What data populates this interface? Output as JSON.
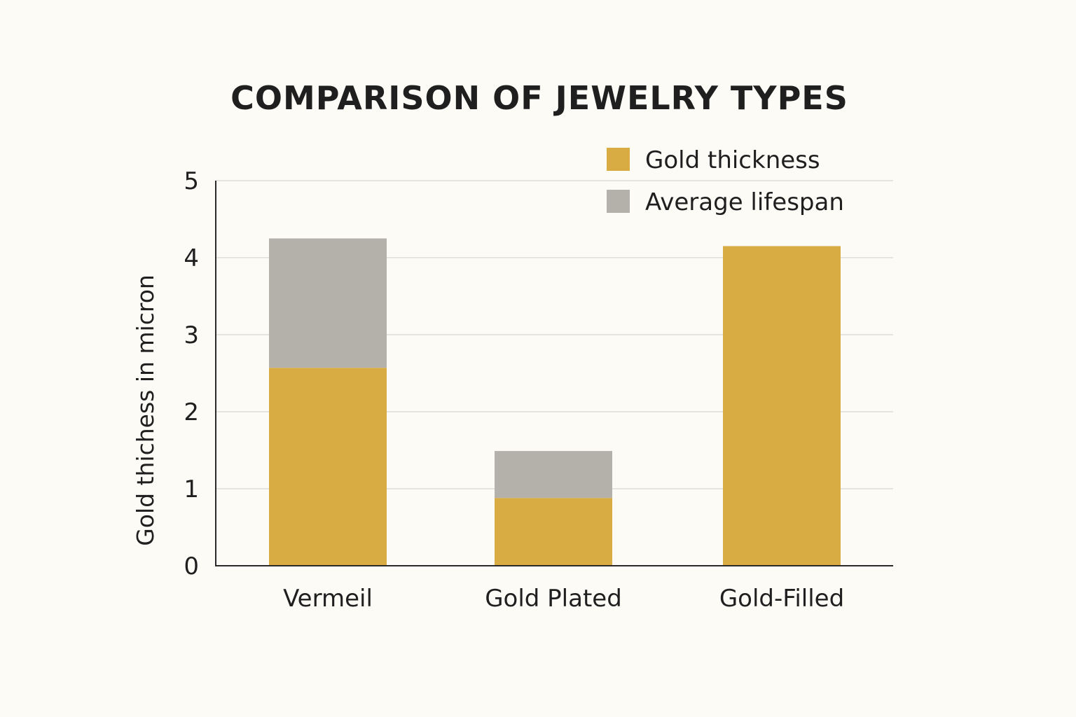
{
  "chart_data": {
    "type": "bar",
    "stacked": true,
    "title": "COMPARISON OF JEWELRY TYPES",
    "xlabel": "",
    "ylabel": "Gold thichess in micron",
    "ylim": [
      0,
      5
    ],
    "yticks": [
      0,
      1,
      2,
      3,
      4,
      5
    ],
    "grid": true,
    "legend_position": "top-right",
    "categories": [
      "Vermeil",
      "Gold Plated",
      "Gold-Filled"
    ],
    "series": [
      {
        "name": "Gold thickness",
        "color": "#d9ab43",
        "values": [
          2.57,
          0.88,
          4.15
        ]
      },
      {
        "name": "Average lifespan",
        "color": "#b4b0aa",
        "values": [
          1.68,
          0.61,
          0
        ]
      }
    ]
  }
}
